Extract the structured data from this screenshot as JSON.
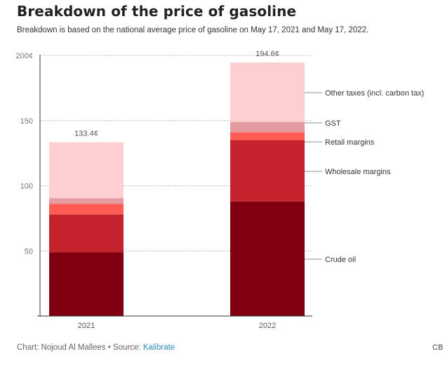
{
  "header": {
    "title": "Breakdown of the price of gasoline",
    "subtitle": "Breakdown is based on the national average price of gasoline on May 17, 2021 and May 17, 2022."
  },
  "footer": {
    "credit_prefix": "Chart: Nojoud Al Mallees • Source: ",
    "source_link": "Kalibrate",
    "logo_text": "CB"
  },
  "colors": {
    "crude_oil": "#800010",
    "wholesale_margins": "#c4232b",
    "retail_margins": "#fe5b54",
    "gst": "#e39b9f",
    "other_taxes": "#fecfd0",
    "axis": "#333333",
    "grid": "#aaaaaa",
    "leader": "#666666"
  },
  "chart_data": {
    "type": "bar",
    "stacked": true,
    "categories": [
      "2021",
      "2022"
    ],
    "series": [
      {
        "name": "Crude oil",
        "values": [
          49,
          88
        ]
      },
      {
        "name": "Wholesale margins",
        "values": [
          29,
          47
        ]
      },
      {
        "name": "Retail margins",
        "values": [
          8,
          6
        ]
      },
      {
        "name": "GST",
        "values": [
          4.5,
          8
        ]
      },
      {
        "name": "Other taxes (incl. carbon tax)",
        "values": [
          42.9,
          45.6
        ]
      }
    ],
    "totals": [
      133.4,
      194.6
    ],
    "total_labels": [
      "133.4¢",
      "194.6¢"
    ],
    "ylim": [
      0,
      200
    ],
    "yticks": [
      50,
      100,
      150,
      200
    ],
    "ytick_labels": [
      "50",
      "100",
      "150",
      "200¢"
    ],
    "grid": true,
    "legend": "right-labels-on-last-bar"
  }
}
